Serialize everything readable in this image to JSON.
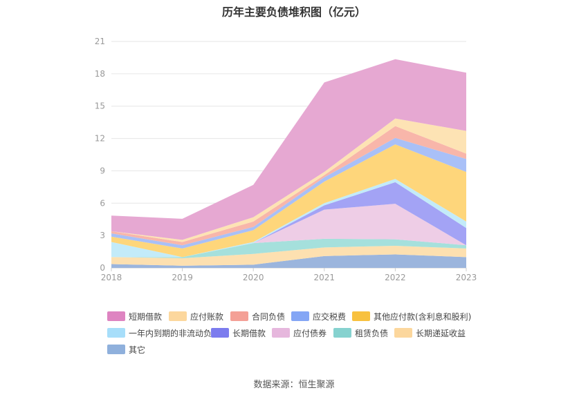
{
  "page": {
    "source_label": "数据来源：恒生聚源"
  },
  "chart_data": {
    "type": "area",
    "stacked": true,
    "title": "历年主要负债堆积图（亿元）",
    "categories": [
      "2018",
      "2019",
      "2020",
      "2021",
      "2022",
      "2023"
    ],
    "ylim": [
      0,
      21
    ],
    "yticks": [
      "0",
      "3",
      "6",
      "9",
      "12",
      "15",
      "18",
      "21"
    ],
    "grid": true,
    "legend_position": "bottom",
    "series": [
      {
        "name": "其它",
        "color": "#9bb5dd",
        "values": [
          0.35,
          0.2,
          0.3,
          1.1,
          1.25,
          1.0
        ]
      },
      {
        "name": "长期递延收益",
        "color": "#fde0b0",
        "values": [
          0.65,
          0.7,
          1.0,
          0.8,
          0.8,
          0.8
        ]
      },
      {
        "name": "租赁负债",
        "color": "#a5e0dc",
        "values": [
          0.0,
          0.1,
          1.0,
          0.8,
          0.6,
          0.3
        ]
      },
      {
        "name": "应付债券",
        "color": "#eecde6",
        "values": [
          0.0,
          0.0,
          0.0,
          2.7,
          3.3,
          0.0
        ]
      },
      {
        "name": "长期借款",
        "color": "#a3a3f5",
        "values": [
          0.0,
          0.0,
          0.0,
          0.4,
          2.0,
          1.6
        ]
      },
      {
        "name": "一年内到期的非流动负债",
        "color": "#c3ebf9",
        "values": [
          1.4,
          0.0,
          0.1,
          0.2,
          0.3,
          0.6
        ]
      },
      {
        "name": "其他应付款(含利息和股利)",
        "color": "#fed67b",
        "values": [
          0.5,
          0.8,
          1.1,
          2.0,
          3.2,
          4.6
        ]
      },
      {
        "name": "应交税费",
        "color": "#a9c0f7",
        "values": [
          0.3,
          0.3,
          0.3,
          0.4,
          0.6,
          1.2
        ]
      },
      {
        "name": "合同负债",
        "color": "#f8b6aa",
        "values": [
          0.2,
          0.3,
          0.5,
          0.2,
          1.1,
          0.5
        ]
      },
      {
        "name": "应付账款",
        "color": "#fde3b4",
        "values": [
          0.0,
          0.2,
          0.4,
          0.3,
          0.7,
          2.1
        ]
      },
      {
        "name": "短期借款",
        "color": "#e6a8d2",
        "values": [
          1.45,
          1.95,
          3.0,
          8.3,
          5.5,
          5.4
        ]
      }
    ],
    "legend": [
      {
        "name": "短期借款",
        "color": "#de84c1"
      },
      {
        "name": "应付账款",
        "color": "#fcd79d"
      },
      {
        "name": "合同负债",
        "color": "#f4a096"
      },
      {
        "name": "应交税费",
        "color": "#84a6f5"
      },
      {
        "name": "其他应付款(含利息和股利)",
        "color": "#f8c13f"
      },
      {
        "name": "一年内到期的非流动负债",
        "color": "#a7defa"
      },
      {
        "name": "长期借款",
        "color": "#7c7cee"
      },
      {
        "name": "应付债券",
        "color": "#e6b7dd"
      },
      {
        "name": "租赁负债",
        "color": "#86d2cf"
      },
      {
        "name": "长期递延收益",
        "color": "#fcd79d"
      },
      {
        "name": "其它",
        "color": "#8fb0dc"
      }
    ]
  }
}
